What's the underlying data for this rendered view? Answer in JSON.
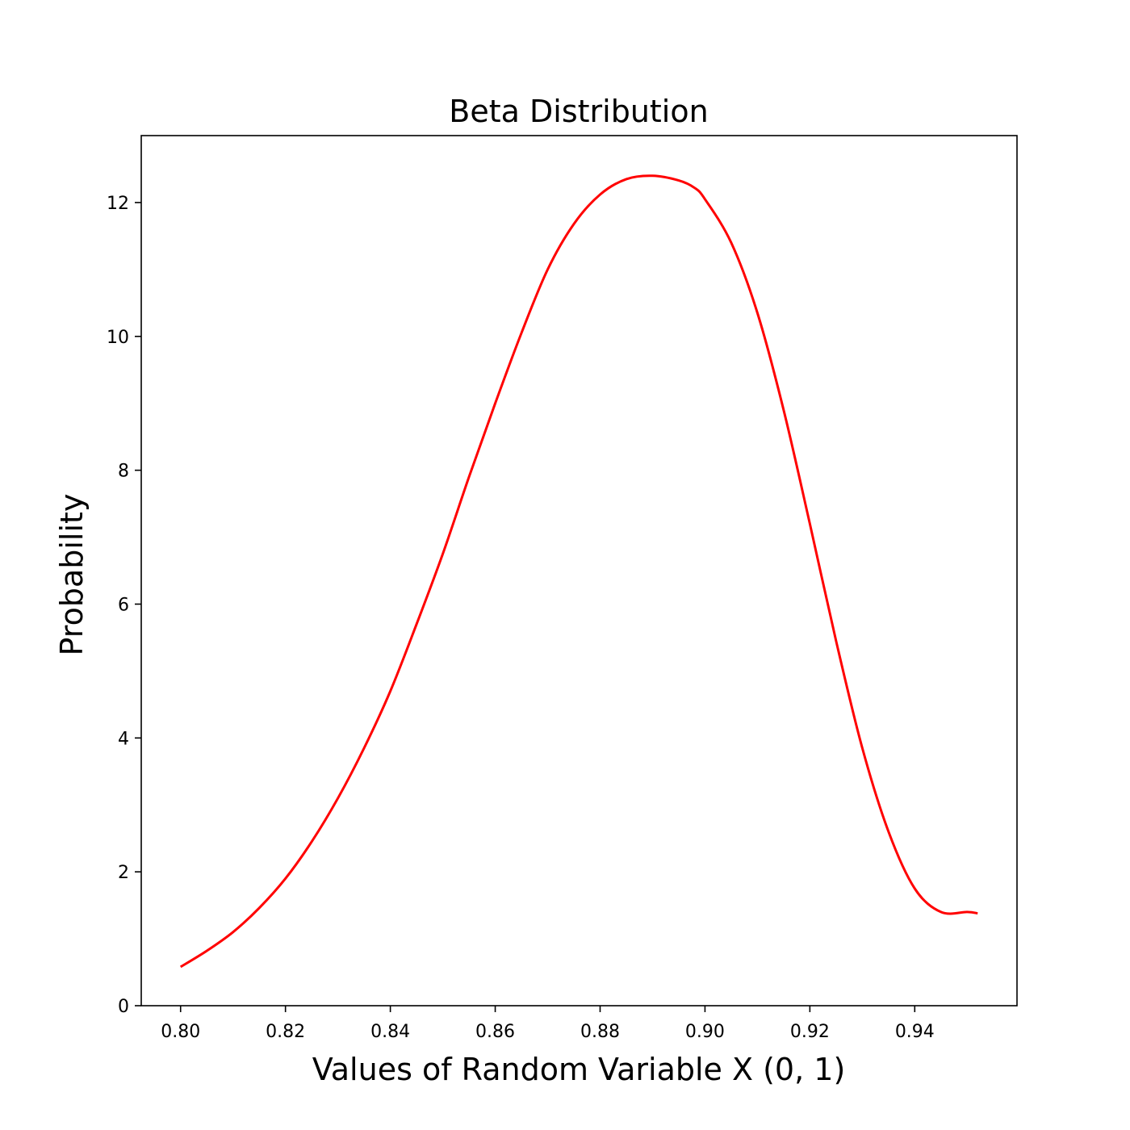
{
  "chart_data": {
    "type": "line",
    "title": "Beta Distribution",
    "xlabel": "Values of Random Variable X (0, 1)",
    "ylabel": "Probability",
    "xlim": [
      0.7925,
      0.9595
    ],
    "ylim": [
      0,
      13.0
    ],
    "xticks": [
      "0.80",
      "0.82",
      "0.84",
      "0.86",
      "0.88",
      "0.90",
      "0.92",
      "0.94"
    ],
    "yticks": [
      "0",
      "2",
      "4",
      "6",
      "8",
      "10",
      "12"
    ],
    "grid": false,
    "series": [
      {
        "color": "#ff0000",
        "x": [
          0.8,
          0.805,
          0.81,
          0.815,
          0.82,
          0.825,
          0.83,
          0.835,
          0.84,
          0.845,
          0.85,
          0.855,
          0.86,
          0.865,
          0.87,
          0.875,
          0.88,
          0.885,
          0.89,
          0.895,
          0.898,
          0.9,
          0.905,
          0.91,
          0.915,
          0.92,
          0.925,
          0.93,
          0.935,
          0.94,
          0.945,
          0.95,
          0.952
        ],
        "y": [
          0.58,
          0.82,
          1.1,
          1.46,
          1.9,
          2.45,
          3.1,
          3.85,
          4.7,
          5.7,
          6.75,
          7.9,
          9.0,
          10.05,
          11.0,
          11.68,
          12.12,
          12.35,
          12.4,
          12.33,
          12.22,
          12.05,
          11.4,
          10.35,
          8.9,
          7.2,
          5.45,
          3.85,
          2.6,
          1.75,
          1.4,
          1.4,
          1.38
        ]
      }
    ]
  }
}
